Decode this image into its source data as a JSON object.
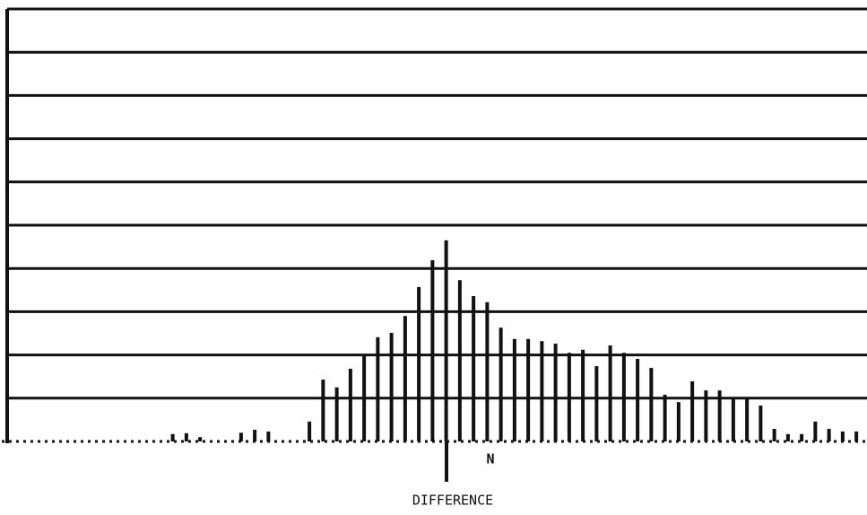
{
  "chart_data": {
    "type": "bar",
    "x_label": "DIFFERENCE",
    "annotation": "N",
    "values": [
      0,
      0,
      0,
      0,
      0,
      0,
      0,
      0,
      0,
      0,
      0,
      0,
      0.17,
      0.19,
      0.1,
      0,
      0,
      0.2,
      0.27,
      0.23,
      0,
      0,
      0.46,
      1.43,
      1.25,
      1.68,
      2.01,
      2.41,
      2.51,
      2.9,
      3.57,
      4.19,
      4.65,
      3.73,
      3.36,
      3.22,
      2.63,
      2.37,
      2.37,
      2.32,
      2.26,
      2.05,
      2.12,
      1.74,
      2.22,
      2.05,
      1.91,
      1.7,
      1.08,
      0.91,
      1.39,
      1.18,
      1.18,
      1.02,
      1.02,
      0.83,
      0.29,
      0.17,
      0.17,
      0.46,
      0.29,
      0.23,
      0.23
    ],
    "color": "#111111",
    "ylim": [
      0,
      10
    ],
    "yticks": [
      0,
      1,
      2,
      3,
      4,
      5,
      6,
      7,
      8,
      9,
      10
    ],
    "grid": true
  }
}
